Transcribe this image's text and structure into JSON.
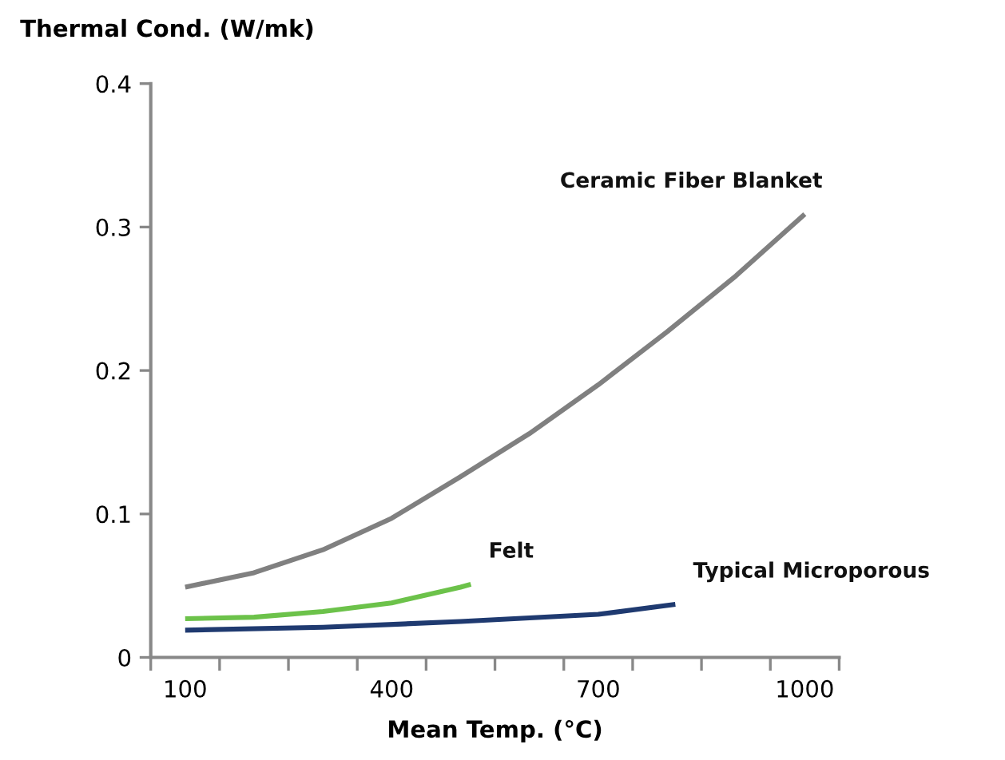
{
  "chart_data": {
    "type": "line",
    "xlabel": "Mean Temp. (°C)",
    "ylabel": "Thermal Cond. (W/mk)",
    "xlim": [
      50,
      1050
    ],
    "xticks": [
      {
        "value": 50,
        "label": null
      },
      {
        "value": 100,
        "label": "100"
      },
      {
        "value": 150,
        "label": null
      },
      {
        "value": 250,
        "label": null
      },
      {
        "value": 350,
        "label": null
      },
      {
        "value": 400,
        "label": "400"
      },
      {
        "value": 450,
        "label": null
      },
      {
        "value": 550,
        "label": null
      },
      {
        "value": 650,
        "label": null
      },
      {
        "value": 700,
        "label": "700"
      },
      {
        "value": 750,
        "label": null
      },
      {
        "value": 850,
        "label": null
      },
      {
        "value": 950,
        "label": null
      },
      {
        "value": 1000,
        "label": "1000"
      },
      {
        "value": 1050,
        "label": null
      }
    ],
    "ylim": [
      0,
      0.4
    ],
    "yticks": [
      {
        "value": 0,
        "label": "0"
      },
      0.1,
      0.2,
      0.3,
      0.4
    ],
    "grid": false,
    "legend": false,
    "marker": "none",
    "line_style": "solid",
    "series": [
      {
        "name": "Ceramic Fiber Blanket",
        "color": "#808080",
        "x": [
          100,
          200,
          300,
          400,
          500,
          600,
          700,
          800,
          900,
          1000
        ],
        "values": [
          0.049,
          0.059,
          0.075,
          0.097,
          0.126,
          0.156,
          0.19,
          0.227,
          0.266,
          0.309
        ]
      },
      {
        "name": "Felt",
        "color": "#6cc24a",
        "x": [
          100,
          200,
          300,
          400,
          500,
          515
        ],
        "values": [
          0.027,
          0.028,
          0.032,
          0.038,
          0.049,
          0.051
        ]
      },
      {
        "name": "Typical Microporous",
        "color": "#1f3a70",
        "x": [
          100,
          300,
          500,
          700,
          812
        ],
        "values": [
          0.019,
          0.021,
          0.025,
          0.03,
          0.037
        ]
      }
    ]
  }
}
